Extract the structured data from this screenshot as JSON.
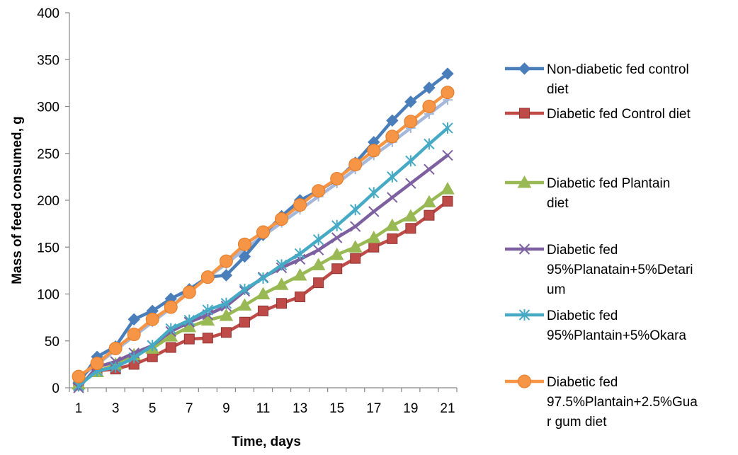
{
  "chart_data": {
    "type": "line",
    "title": "",
    "xlabel": "Time, days",
    "ylabel": "Mass of feed consumed, g",
    "x": [
      1,
      2,
      3,
      4,
      5,
      6,
      7,
      8,
      9,
      10,
      11,
      12,
      13,
      14,
      15,
      16,
      17,
      18,
      19,
      20,
      21
    ],
    "x_tick_labels": [
      "1",
      "3",
      "5",
      "7",
      "9",
      "11",
      "13",
      "15",
      "17",
      "19",
      "21"
    ],
    "y_tick_labels": [
      "0",
      "50",
      "100",
      "150",
      "200",
      "250",
      "300",
      "350",
      "400"
    ],
    "ylim": [
      0,
      400
    ],
    "grid": false,
    "legend_position": "right",
    "series": [
      {
        "name": "Non-diabetic fed control diet",
        "legend_lines": [
          "Non-diabetic fed control",
          "diet"
        ],
        "color": "#4A7EBB",
        "marker": "diamond",
        "values": [
          5,
          33,
          44,
          73,
          82,
          95,
          105,
          118,
          120,
          140,
          163,
          183,
          200,
          210,
          222,
          240,
          262,
          285,
          305,
          320,
          335
        ]
      },
      {
        "name": "Diabetic fed Control diet",
        "legend_lines": [
          "Diabetic fed Control diet"
        ],
        "color": "#BE4B48",
        "marker": "square",
        "values": [
          3,
          18,
          20,
          25,
          33,
          43,
          52,
          53,
          59,
          70,
          82,
          90,
          97,
          112,
          127,
          138,
          150,
          159,
          170,
          184,
          199
        ]
      },
      {
        "name": "Diabetic fed Plantain diet",
        "legend_lines": [
          "Diabetic fed Plantain",
          "diet"
        ],
        "color": "#98B954",
        "marker": "triangle",
        "values": [
          4,
          17,
          25,
          35,
          42,
          55,
          65,
          72,
          77,
          88,
          100,
          110,
          120,
          131,
          142,
          150,
          160,
          173,
          183,
          198,
          212
        ]
      },
      {
        "name": "Diabetic fed 95%Planatain+5%Detarium",
        "legend_lines": [
          "Diabetic fed",
          "95%Planatain+5%Detari",
          "um"
        ],
        "color": "#7D60A0",
        "marker": "x",
        "values": [
          0,
          22,
          28,
          37,
          45,
          60,
          70,
          78,
          87,
          103,
          118,
          128,
          137,
          147,
          160,
          172,
          188,
          203,
          218,
          233,
          248
        ]
      },
      {
        "name": "Diabetic fed 95%Plantain+5%Okara",
        "legend_lines": [
          "Diabetic fed",
          "95%Plantain+5%Okara"
        ],
        "color": "#46AAC5",
        "marker": "star",
        "values": [
          2,
          18,
          22,
          32,
          45,
          63,
          72,
          83,
          90,
          105,
          117,
          131,
          143,
          158,
          173,
          190,
          208,
          225,
          242,
          260,
          277
        ]
      },
      {
        "name": "Diabetic fed 97.5%Plantain+2.5%Guar gum diet",
        "legend_lines": [
          "Diabetic fed",
          "97.5%Plantain+2.5%Gua",
          "r gum diet"
        ],
        "color": "#F69545",
        "marker": "circle",
        "values": [
          12,
          26,
          42,
          57,
          73,
          86,
          102,
          118,
          135,
          153,
          166,
          180,
          195,
          210,
          223,
          238,
          253,
          268,
          284,
          300,
          315
        ]
      },
      {
        "color": "#A5B8DC",
        "marker": "plus",
        "values": [
          10,
          25,
          40,
          55,
          70,
          85,
          105,
          118,
          132,
          148,
          162,
          176,
          190,
          204,
          218,
          233,
          248,
          262,
          277,
          292,
          307
        ]
      }
    ]
  }
}
